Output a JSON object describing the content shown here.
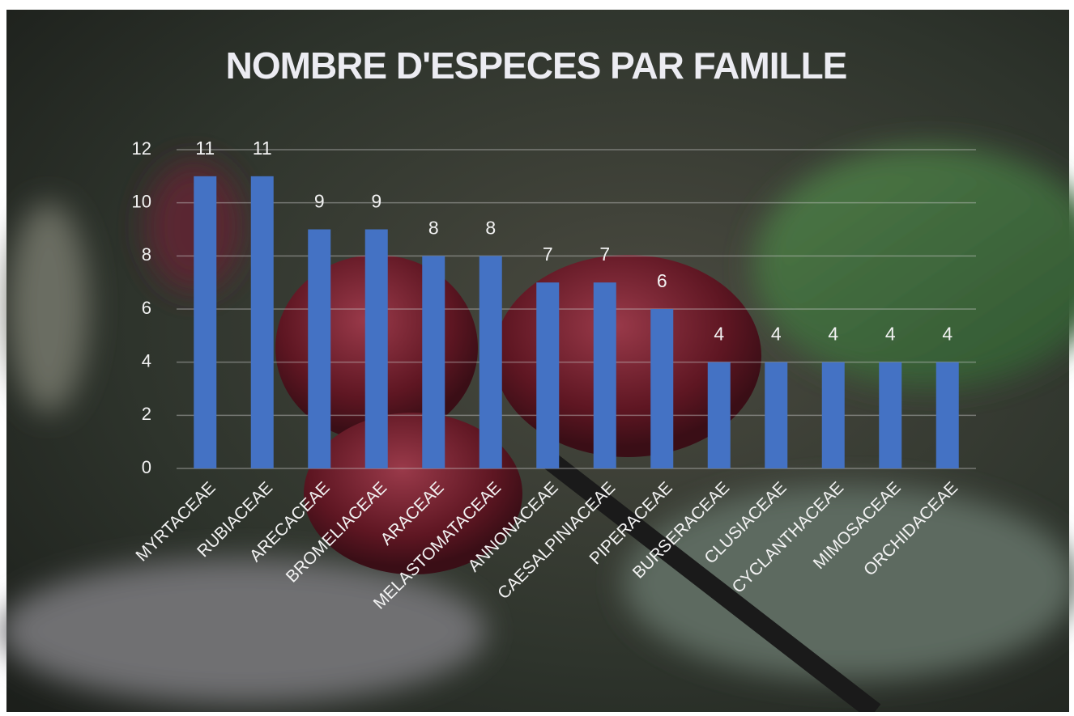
{
  "chart_data": {
    "type": "bar",
    "title": "NOMBRE D'ESPECES PAR FAMILLE",
    "categories": [
      "MYRTACEAE",
      "RUBIACEAE",
      "ARECACEAE",
      "BROMELIACEAE",
      "ARACEAE",
      "MELASTOMATACEAE",
      "ANNONACEAE",
      "CAESALPINIACEAE",
      "PIPERACEAE",
      "BURSERACEAE",
      "CLUSIACEAE",
      "CYCLANTHACEAE",
      "MIMOSACEAE",
      "ORCHIDACEAE"
    ],
    "values": [
      11,
      11,
      9,
      9,
      8,
      8,
      7,
      7,
      6,
      4,
      4,
      4,
      4,
      4
    ],
    "color": "#4472c4",
    "ylim": [
      0,
      12
    ],
    "yticks": [
      0,
      2,
      4,
      6,
      8,
      10,
      12
    ],
    "grid": true
  }
}
